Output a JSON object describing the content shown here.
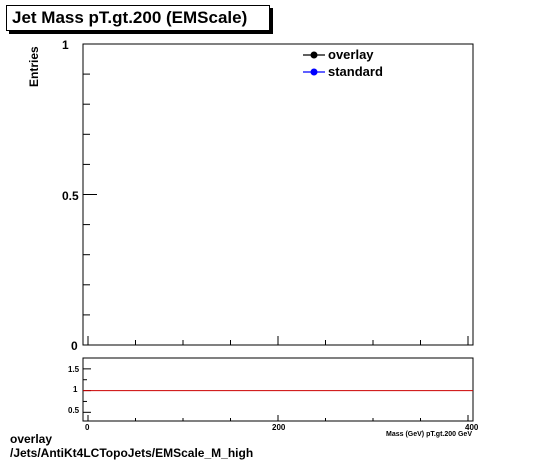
{
  "chart_data": [
    {
      "type": "line",
      "title": "Jet Mass pT.gt.200 (EMScale)",
      "ylabel": "Entries",
      "xlim": [
        0,
        400
      ],
      "ylim": [
        0,
        1
      ],
      "y_tick_labels": [
        "0",
        "0.5",
        "1"
      ],
      "series": [
        {
          "name": "overlay",
          "color": "#000000",
          "x": [],
          "y": []
        },
        {
          "name": "standard",
          "color": "#0000ff",
          "x": [],
          "y": []
        }
      ],
      "legend": "top-right",
      "grid": false
    },
    {
      "type": "line",
      "xlim": [
        0,
        400
      ],
      "ylim": [
        0.3,
        1.75
      ],
      "xlabel": "Mass (GeV) pT.gt.200 GeV",
      "x_tick_labels": [
        "0",
        "200",
        "400"
      ],
      "y_tick_labels": [
        "0.5",
        "1",
        "1.5"
      ],
      "reference_line": {
        "y": 1,
        "color": "#cc0000"
      },
      "grid": false
    }
  ],
  "footer": {
    "line1": "overlay",
    "line2": "/Jets/AntiKt4LCTopoJets/EMScale_M_high"
  }
}
